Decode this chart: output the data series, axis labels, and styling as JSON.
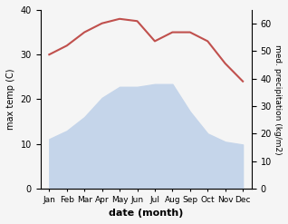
{
  "months": [
    "Jan",
    "Feb",
    "Mar",
    "Apr",
    "May",
    "Jun",
    "Jul",
    "Aug",
    "Sep",
    "Oct",
    "Nov",
    "Dec"
  ],
  "temperature": [
    30,
    32,
    35,
    37,
    38,
    37.5,
    33,
    35,
    35,
    33,
    28,
    24
  ],
  "precipitation": [
    18,
    21,
    26,
    33,
    37,
    37,
    38,
    38,
    28,
    20,
    17,
    16
  ],
  "temp_color": "#c0504d",
  "precip_color": "#c5d5ea",
  "temp_ylim": [
    0,
    40
  ],
  "precip_ylim": [
    0,
    65
  ],
  "xlabel": "date (month)",
  "ylabel_left": "max temp (C)",
  "ylabel_right": "med. precipitation (kg/m2)",
  "temp_yticks": [
    0,
    10,
    20,
    30,
    40
  ],
  "precip_yticks": [
    0,
    10,
    20,
    30,
    40,
    50,
    60
  ],
  "background_color": "#f5f5f5"
}
